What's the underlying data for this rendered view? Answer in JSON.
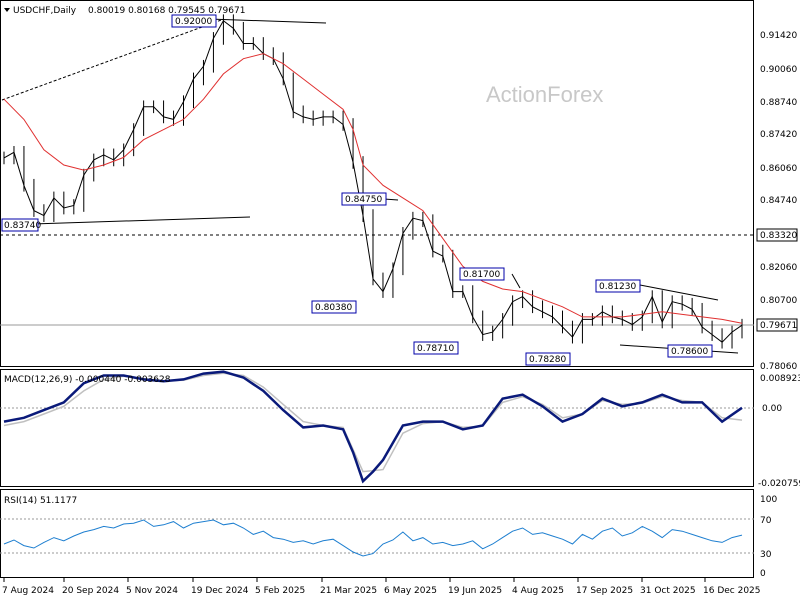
{
  "header": {
    "symbol_title": "USDCHF,Daily",
    "ohlc": "0.80019 0.80168 0.79545 0.79671"
  },
  "watermark": "ActionForex",
  "colors": {
    "price": "#000000",
    "sma": "#e03030",
    "macd": "#0a1a7a",
    "signal": "#c0c0c0",
    "rsi": "#1e7fd0",
    "grid": "#888888",
    "label_border": "#0000aa"
  },
  "chart_data": {
    "type": "line",
    "title": "USDCHF,Daily",
    "x_ticks": [
      "7 Aug 2024",
      "20 Sep 2024",
      "5 Nov 2024",
      "19 Dec 2024",
      "5 Feb 2025",
      "21 Mar 2025",
      "6 May 2025",
      "19 Jun 2025",
      "4 Aug 2025",
      "17 Sep 2025",
      "31 Oct 2025",
      "16 Dec 2025"
    ],
    "price_panel": {
      "y_ticks": [
        "0.91420",
        "0.90060",
        "0.88740",
        "0.87420",
        "0.86060",
        "0.84740",
        "0.83320",
        "0.82060",
        "0.80700",
        "0.79671",
        "0.78060"
      ],
      "ylim": [
        0.7806,
        0.9236
      ],
      "current_price": "0.79671",
      "hline_level": 0.8332,
      "hline_label": "0.83320",
      "annotations": [
        "0.92000",
        "0.83740",
        "0.84750",
        "0.80380",
        "0.81700",
        "0.78710",
        "0.78280",
        "0.81230",
        "0.78600"
      ],
      "series": [
        {
          "type": "candlestick_close",
          "x": [
            0,
            10,
            20,
            30,
            40,
            50,
            60,
            70,
            80,
            90,
            100,
            110,
            120,
            130,
            140,
            150,
            160,
            170,
            180,
            190,
            200,
            210,
            220,
            230,
            240,
            250,
            260,
            270,
            280,
            290,
            300,
            310,
            320,
            330,
            340,
            350,
            360,
            370,
            380,
            390,
            400,
            410,
            420,
            430,
            440,
            450,
            460,
            470,
            480,
            490,
            500,
            510,
            520,
            530,
            540,
            550,
            560,
            570,
            580,
            590,
            600,
            610,
            620,
            630,
            640,
            650,
            660,
            670,
            680,
            690,
            700,
            710,
            720,
            730,
            740
          ],
          "values": [
            0.8628,
            0.865,
            0.852,
            0.842,
            0.84,
            0.847,
            0.843,
            0.844,
            0.856,
            0.862,
            0.864,
            0.862,
            0.866,
            0.874,
            0.883,
            0.883,
            0.879,
            0.878,
            0.885,
            0.894,
            0.899,
            0.91,
            0.917,
            0.914,
            0.908,
            0.908,
            0.904,
            0.902,
            0.894,
            0.881,
            0.879,
            0.878,
            0.879,
            0.879,
            0.876,
            0.861,
            0.84,
            0.815,
            0.81,
            0.819,
            0.833,
            0.839,
            0.838,
            0.826,
            0.824,
            0.81,
            0.81,
            0.8,
            0.793,
            0.794,
            0.799,
            0.806,
            0.808,
            0.804,
            0.802,
            0.8,
            0.796,
            0.792,
            0.799,
            0.799,
            0.802,
            0.8,
            0.799,
            0.797,
            0.8,
            0.808,
            0.798,
            0.806,
            0.805,
            0.803,
            0.796,
            0.793,
            0.79,
            0.794,
            0.7967
          ]
        },
        {
          "type": "sma",
          "x": [
            0,
            20,
            40,
            60,
            80,
            100,
            120,
            140,
            160,
            180,
            200,
            220,
            240,
            260,
            280,
            300,
            320,
            340,
            350,
            360,
            380,
            400,
            420,
            440,
            460,
            480,
            500,
            520,
            540,
            560,
            580,
            600,
            620,
            640,
            660,
            680,
            700,
            720,
            740
          ],
          "values": [
            0.886,
            0.878,
            0.866,
            0.86,
            0.858,
            0.86,
            0.863,
            0.87,
            0.874,
            0.878,
            0.886,
            0.896,
            0.902,
            0.904,
            0.9,
            0.894,
            0.888,
            0.882,
            0.874,
            0.86,
            0.852,
            0.847,
            0.842,
            0.831,
            0.82,
            0.814,
            0.811,
            0.81,
            0.807,
            0.804,
            0.8,
            0.8,
            0.8,
            0.801,
            0.802,
            0.801,
            0.8,
            0.799,
            0.7975
          ]
        }
      ]
    },
    "macd_panel": {
      "label": "MACD(12,26,9) -0.000440 -0.003628",
      "y_ticks": [
        "0.008923",
        "0.00",
        "-0.020759"
      ],
      "ylim": [
        -0.020759,
        0.008923
      ],
      "series": [
        {
          "type": "macd",
          "x": [
            0,
            20,
            40,
            60,
            80,
            100,
            120,
            140,
            160,
            180,
            200,
            220,
            240,
            260,
            280,
            300,
            320,
            340,
            350,
            360,
            370,
            380,
            400,
            420,
            440,
            460,
            480,
            500,
            520,
            540,
            560,
            580,
            600,
            620,
            640,
            660,
            680,
            700,
            720,
            740
          ],
          "values": [
            -0.004,
            -0.003,
            -0.001,
            0.001,
            0.006,
            0.008,
            0.008,
            0.007,
            0.0065,
            0.007,
            0.0085,
            0.009,
            0.0075,
            0.004,
            -0.001,
            -0.0055,
            -0.005,
            -0.006,
            -0.012,
            -0.0195,
            -0.017,
            -0.014,
            -0.005,
            -0.004,
            -0.004,
            -0.006,
            -0.005,
            0.002,
            0.003,
            0.0,
            -0.004,
            -0.002,
            0.002,
            0.0,
            0.001,
            0.003,
            0.001,
            0.001,
            -0.004,
            -0.0004
          ]
        },
        {
          "type": "signal",
          "x": [
            0,
            20,
            40,
            60,
            80,
            100,
            120,
            140,
            160,
            180,
            200,
            220,
            240,
            260,
            280,
            300,
            320,
            340,
            360,
            380,
            400,
            420,
            440,
            460,
            480,
            500,
            520,
            540,
            560,
            580,
            600,
            620,
            640,
            660,
            680,
            700,
            720,
            740
          ],
          "values": [
            -0.005,
            -0.004,
            -0.002,
            0.0,
            0.004,
            0.007,
            0.0078,
            0.0072,
            0.0066,
            0.0068,
            0.008,
            0.0086,
            0.008,
            0.005,
            0.0005,
            -0.004,
            -0.005,
            -0.0055,
            -0.017,
            -0.0165,
            -0.007,
            -0.0045,
            -0.004,
            -0.0055,
            -0.0052,
            0.001,
            0.0025,
            0.0005,
            -0.003,
            -0.002,
            0.0015,
            0.0005,
            0.0008,
            0.0025,
            0.0015,
            0.001,
            -0.003,
            -0.0036
          ]
        }
      ]
    },
    "rsi_panel": {
      "label": "RSI(14) 51.1177",
      "y_ticks": [
        "100",
        "70",
        "30",
        "0"
      ],
      "ylim": [
        0,
        100
      ],
      "series": [
        {
          "type": "rsi",
          "x": [
            0,
            10,
            20,
            30,
            40,
            50,
            60,
            70,
            80,
            90,
            100,
            110,
            120,
            130,
            140,
            150,
            160,
            170,
            180,
            190,
            200,
            210,
            220,
            230,
            240,
            250,
            260,
            270,
            280,
            290,
            300,
            310,
            320,
            330,
            340,
            350,
            360,
            370,
            380,
            390,
            400,
            410,
            420,
            430,
            440,
            450,
            460,
            470,
            480,
            490,
            500,
            510,
            520,
            530,
            540,
            550,
            560,
            570,
            580,
            590,
            600,
            610,
            620,
            630,
            640,
            650,
            660,
            670,
            680,
            690,
            700,
            710,
            720,
            730,
            740
          ],
          "values": [
            40,
            45,
            38,
            35,
            42,
            48,
            44,
            50,
            55,
            58,
            62,
            60,
            65,
            66,
            70,
            62,
            64,
            68,
            60,
            66,
            68,
            70,
            64,
            66,
            60,
            52,
            56,
            48,
            46,
            42,
            44,
            40,
            44,
            46,
            38,
            30,
            25,
            28,
            40,
            45,
            55,
            44,
            48,
            40,
            42,
            38,
            40,
            44,
            34,
            40,
            48,
            56,
            60,
            52,
            54,
            50,
            46,
            40,
            52,
            46,
            56,
            60,
            50,
            54,
            62,
            56,
            48,
            58,
            56,
            52,
            48,
            44,
            42,
            48,
            51.1
          ]
        }
      ]
    }
  }
}
